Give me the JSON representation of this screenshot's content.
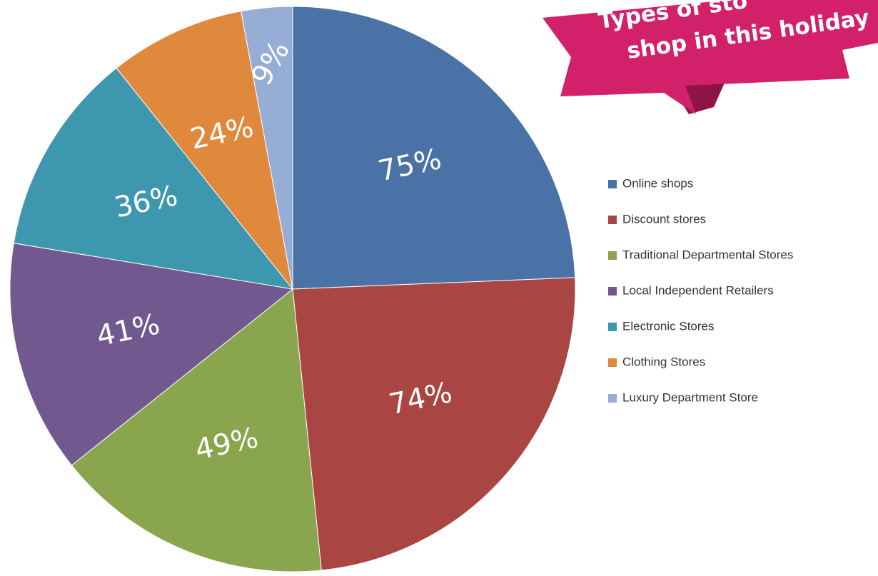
{
  "chart_data": {
    "type": "pie",
    "title_lines": [
      "Types of sto",
      "shop in this holiday"
    ],
    "categories": [
      "Online shops",
      "Discount stores",
      "Traditional  Departmental Stores",
      "Local Independent Retailers",
      "Electronic Stores",
      "Clothing Stores",
      "Luxury Department Store"
    ],
    "values": [
      75,
      74,
      49,
      41,
      36,
      24,
      9
    ],
    "value_labels": [
      "75%",
      "74%",
      "49%",
      "41%",
      "36%",
      "24%",
      "9%"
    ],
    "colors": [
      "#4a72a6",
      "#a94543",
      "#89a54e",
      "#71588f",
      "#3d97ae",
      "#e0883c",
      "#96add6"
    ],
    "legend": "right"
  }
}
